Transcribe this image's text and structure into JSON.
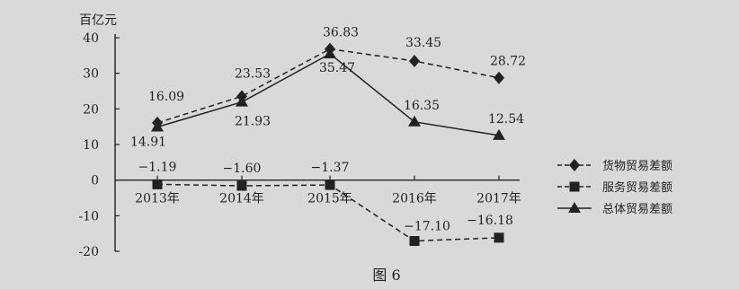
{
  "chart_data": {
    "type": "line",
    "ylabel": "百亿元",
    "caption": "图 6",
    "ylim": [
      -20,
      40
    ],
    "yticks": [
      "40",
      "30",
      "20",
      "10",
      "0",
      "-10",
      "-20"
    ],
    "categories": [
      "2013年",
      "2014年",
      "2015年",
      "2016年",
      "2017年"
    ],
    "series": [
      {
        "name": "货物贸易差额",
        "values": [
          16.09,
          23.53,
          36.83,
          33.45,
          28.72
        ],
        "labels": [
          "16.09",
          "23.53",
          "36.83",
          "33.45",
          "28.72"
        ],
        "marker": "diamond",
        "dash": true
      },
      {
        "name": "服务贸易差额",
        "values": [
          -1.19,
          -1.6,
          -1.37,
          -17.1,
          -16.18
        ],
        "labels": [
          "−1.19",
          "−1.60",
          "−1.37",
          "−17.10",
          "−16.18"
        ],
        "marker": "square",
        "dash": true
      },
      {
        "name": "总体贸易差额",
        "values": [
          14.91,
          21.93,
          35.47,
          16.35,
          12.54
        ],
        "labels": [
          "14.91",
          "21.93",
          "35.47",
          "16.35",
          "12.54"
        ],
        "marker": "triangle",
        "dash": false
      }
    ],
    "legend_position": "right",
    "grid": false
  },
  "colors": {
    "background": "#d9d9d7",
    "ink": "#222222"
  }
}
